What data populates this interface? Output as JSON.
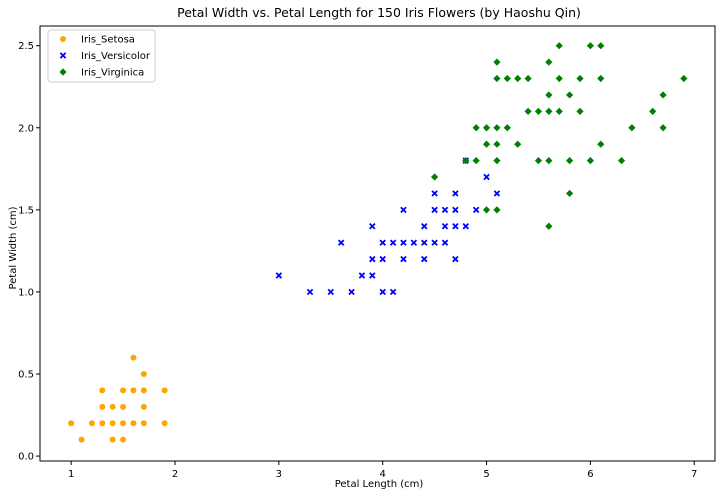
{
  "chart_data": {
    "type": "scatter",
    "title": "Petal Width vs. Petal Length for 150 Iris Flowers (by Haoshu Qin)",
    "xlabel": "Petal Length (cm)",
    "ylabel": "Petal Width (cm)",
    "xlim": [
      0.7,
      7.2
    ],
    "ylim": [
      -0.03,
      2.62
    ],
    "xticks": [
      1,
      2,
      3,
      4,
      5,
      6,
      7
    ],
    "xtick_labels": [
      "1",
      "2",
      "3",
      "4",
      "5",
      "6",
      "7"
    ],
    "yticks": [
      0.0,
      0.5,
      1.0,
      1.5,
      2.0,
      2.5
    ],
    "ytick_labels": [
      "0.0",
      "0.5",
      "1.0",
      "1.5",
      "2.0",
      "2.5"
    ],
    "grid": false,
    "legend_position": "top-left",
    "series": [
      {
        "name": "Iris_Setosa",
        "color": "#ffa500",
        "marker": "circle",
        "points": [
          [
            1.0,
            0.2
          ],
          [
            1.1,
            0.1
          ],
          [
            1.2,
            0.2
          ],
          [
            1.3,
            0.2
          ],
          [
            1.3,
            0.3
          ],
          [
            1.3,
            0.4
          ],
          [
            1.4,
            0.1
          ],
          [
            1.4,
            0.2
          ],
          [
            1.4,
            0.3
          ],
          [
            1.5,
            0.1
          ],
          [
            1.5,
            0.2
          ],
          [
            1.5,
            0.3
          ],
          [
            1.5,
            0.4
          ],
          [
            1.6,
            0.2
          ],
          [
            1.6,
            0.4
          ],
          [
            1.6,
            0.6
          ],
          [
            1.7,
            0.2
          ],
          [
            1.7,
            0.3
          ],
          [
            1.7,
            0.4
          ],
          [
            1.7,
            0.5
          ],
          [
            1.9,
            0.2
          ],
          [
            1.9,
            0.4
          ]
        ]
      },
      {
        "name": "Iris_Versicolor",
        "color": "#0000ff",
        "marker": "x",
        "points": [
          [
            3.0,
            1.1
          ],
          [
            3.3,
            1.0
          ],
          [
            3.5,
            1.0
          ],
          [
            3.6,
            1.3
          ],
          [
            3.7,
            1.0
          ],
          [
            3.8,
            1.1
          ],
          [
            3.9,
            1.1
          ],
          [
            3.9,
            1.2
          ],
          [
            3.9,
            1.4
          ],
          [
            4.0,
            1.0
          ],
          [
            4.0,
            1.2
          ],
          [
            4.0,
            1.3
          ],
          [
            4.1,
            1.0
          ],
          [
            4.1,
            1.3
          ],
          [
            4.2,
            1.2
          ],
          [
            4.2,
            1.3
          ],
          [
            4.2,
            1.5
          ],
          [
            4.3,
            1.3
          ],
          [
            4.4,
            1.2
          ],
          [
            4.4,
            1.3
          ],
          [
            4.4,
            1.4
          ],
          [
            4.5,
            1.3
          ],
          [
            4.5,
            1.5
          ],
          [
            4.5,
            1.6
          ],
          [
            4.6,
            1.3
          ],
          [
            4.6,
            1.4
          ],
          [
            4.6,
            1.5
          ],
          [
            4.7,
            1.2
          ],
          [
            4.7,
            1.4
          ],
          [
            4.7,
            1.5
          ],
          [
            4.7,
            1.6
          ],
          [
            4.8,
            1.4
          ],
          [
            4.8,
            1.8
          ],
          [
            4.9,
            1.5
          ],
          [
            5.0,
            1.7
          ],
          [
            5.1,
            1.6
          ]
        ]
      },
      {
        "name": "Iris_Virginica",
        "color": "#008000",
        "marker": "diamond",
        "points": [
          [
            4.5,
            1.7
          ],
          [
            4.8,
            1.8
          ],
          [
            4.9,
            1.8
          ],
          [
            4.9,
            2.0
          ],
          [
            5.0,
            1.5
          ],
          [
            5.0,
            1.9
          ],
          [
            5.0,
            2.0
          ],
          [
            5.1,
            1.5
          ],
          [
            5.1,
            1.8
          ],
          [
            5.1,
            1.9
          ],
          [
            5.1,
            2.0
          ],
          [
            5.1,
            2.3
          ],
          [
            5.1,
            2.4
          ],
          [
            5.2,
            2.0
          ],
          [
            5.2,
            2.3
          ],
          [
            5.3,
            1.9
          ],
          [
            5.3,
            2.3
          ],
          [
            5.4,
            2.1
          ],
          [
            5.4,
            2.3
          ],
          [
            5.5,
            1.8
          ],
          [
            5.5,
            2.1
          ],
          [
            5.6,
            1.4
          ],
          [
            5.6,
            1.8
          ],
          [
            5.6,
            2.1
          ],
          [
            5.6,
            2.2
          ],
          [
            5.6,
            2.4
          ],
          [
            5.7,
            2.1
          ],
          [
            5.7,
            2.3
          ],
          [
            5.7,
            2.5
          ],
          [
            5.8,
            1.6
          ],
          [
            5.8,
            1.8
          ],
          [
            5.8,
            2.2
          ],
          [
            5.9,
            2.1
          ],
          [
            5.9,
            2.3
          ],
          [
            6.0,
            1.8
          ],
          [
            6.0,
            2.5
          ],
          [
            6.1,
            1.9
          ],
          [
            6.1,
            2.3
          ],
          [
            6.1,
            2.5
          ],
          [
            6.3,
            1.8
          ],
          [
            6.4,
            2.0
          ],
          [
            6.6,
            2.1
          ],
          [
            6.7,
            2.0
          ],
          [
            6.7,
            2.2
          ],
          [
            6.9,
            2.3
          ]
        ]
      }
    ]
  }
}
